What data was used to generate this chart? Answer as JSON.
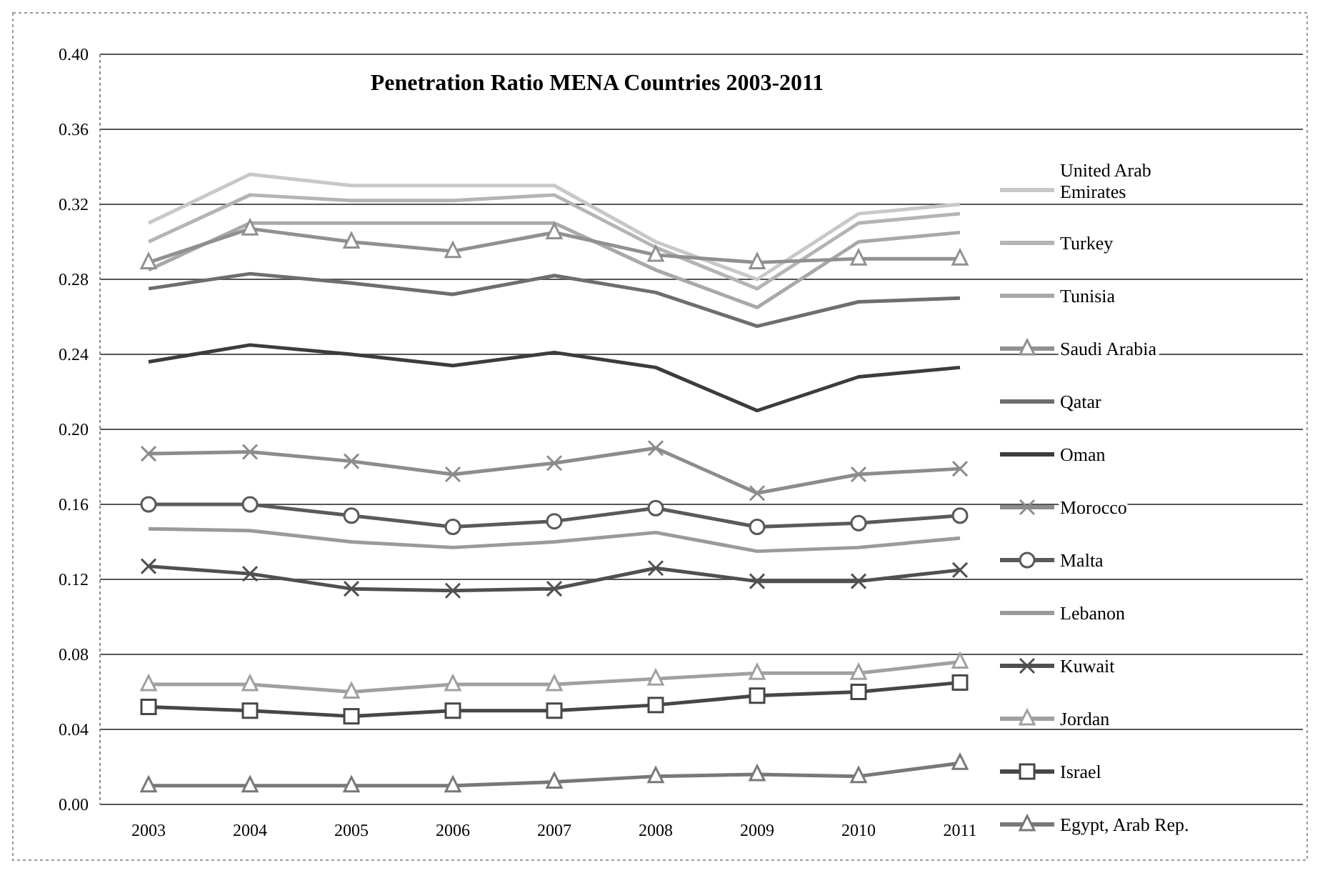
{
  "chart_data": {
    "type": "line",
    "title": "Penetration Ratio MENA Countries 2003-2011",
    "categories": [
      "2003",
      "2004",
      "2005",
      "2006",
      "2007",
      "2008",
      "2009",
      "2010",
      "2011"
    ],
    "ylim": [
      0,
      0.4
    ],
    "yticks": [
      {
        "value": 0,
        "label": "0.00"
      },
      {
        "value": 0.04,
        "label": "0.04"
      },
      {
        "value": 0.08,
        "label": "0.08"
      },
      {
        "value": 0.12,
        "label": "0.12"
      },
      {
        "value": 0.16,
        "label": "0.16"
      },
      {
        "value": 0.2,
        "label": "0.20"
      },
      {
        "value": 0.24,
        "label": "0.24"
      },
      {
        "value": 0.28,
        "label": "0.28"
      },
      {
        "value": 0.32,
        "label": "0.32"
      },
      {
        "value": 0.36,
        "label": "0.36"
      },
      {
        "value": 0.4,
        "label": "0.40"
      }
    ],
    "grid": "y",
    "legend": "right",
    "line_style": "solid",
    "series": [
      {
        "name": "United Arab Emirates",
        "color": "#c8c8c8",
        "marker": "none",
        "values": [
          0.31,
          0.336,
          0.33,
          0.33,
          0.33,
          0.3,
          0.28,
          0.315,
          0.32
        ]
      },
      {
        "name": "Turkey",
        "color": "#b4b4b4",
        "marker": "none",
        "values": [
          0.3,
          0.325,
          0.322,
          0.322,
          0.325,
          0.297,
          0.275,
          0.31,
          0.315
        ]
      },
      {
        "name": "Tunisia",
        "color": "#a8a8a8",
        "marker": "none",
        "values": [
          0.285,
          0.31,
          0.31,
          0.31,
          0.31,
          0.285,
          0.265,
          0.3,
          0.305
        ]
      },
      {
        "name": "Saudi Arabia",
        "color": "#909090",
        "marker": "triangle",
        "values": [
          0.289,
          0.307,
          0.3,
          0.295,
          0.305,
          0.293,
          0.289,
          0.291,
          0.291
        ]
      },
      {
        "name": "Qatar",
        "color": "#6e6e6e",
        "marker": "none",
        "values": [
          0.275,
          0.283,
          0.278,
          0.272,
          0.282,
          0.273,
          0.255,
          0.268,
          0.27
        ]
      },
      {
        "name": "Oman",
        "color": "#3c3c3c",
        "marker": "none",
        "values": [
          0.236,
          0.245,
          0.24,
          0.234,
          0.241,
          0.233,
          0.21,
          0.228,
          0.233
        ]
      },
      {
        "name": "Morocco",
        "color": "#8c8c8c",
        "marker": "cross",
        "values": [
          0.187,
          0.188,
          0.183,
          0.176,
          0.182,
          0.19,
          0.166,
          0.176,
          0.179
        ]
      },
      {
        "name": "Malta",
        "color": "#5a5a5a",
        "marker": "circle",
        "values": [
          0.16,
          0.16,
          0.154,
          0.148,
          0.151,
          0.158,
          0.148,
          0.15,
          0.154
        ]
      },
      {
        "name": "Lebanon",
        "color": "#9a9a9a",
        "marker": "none",
        "values": [
          0.147,
          0.146,
          0.14,
          0.137,
          0.14,
          0.145,
          0.135,
          0.137,
          0.142
        ]
      },
      {
        "name": "Kuwait",
        "color": "#505050",
        "marker": "cross",
        "values": [
          0.127,
          0.123,
          0.115,
          0.114,
          0.115,
          0.126,
          0.119,
          0.119,
          0.125
        ]
      },
      {
        "name": "Jordan",
        "color": "#a0a0a0",
        "marker": "triangle",
        "values": [
          0.064,
          0.064,
          0.06,
          0.064,
          0.064,
          0.067,
          0.07,
          0.07,
          0.076
        ]
      },
      {
        "name": "Israel",
        "color": "#464646",
        "marker": "square",
        "values": [
          0.052,
          0.05,
          0.047,
          0.05,
          0.05,
          0.053,
          0.058,
          0.06,
          0.065
        ]
      },
      {
        "name": "Egypt, Arab Rep.",
        "color": "#787878",
        "marker": "triangle",
        "values": [
          0.01,
          0.01,
          0.01,
          0.01,
          0.012,
          0.015,
          0.016,
          0.015,
          0.022
        ]
      }
    ]
  }
}
